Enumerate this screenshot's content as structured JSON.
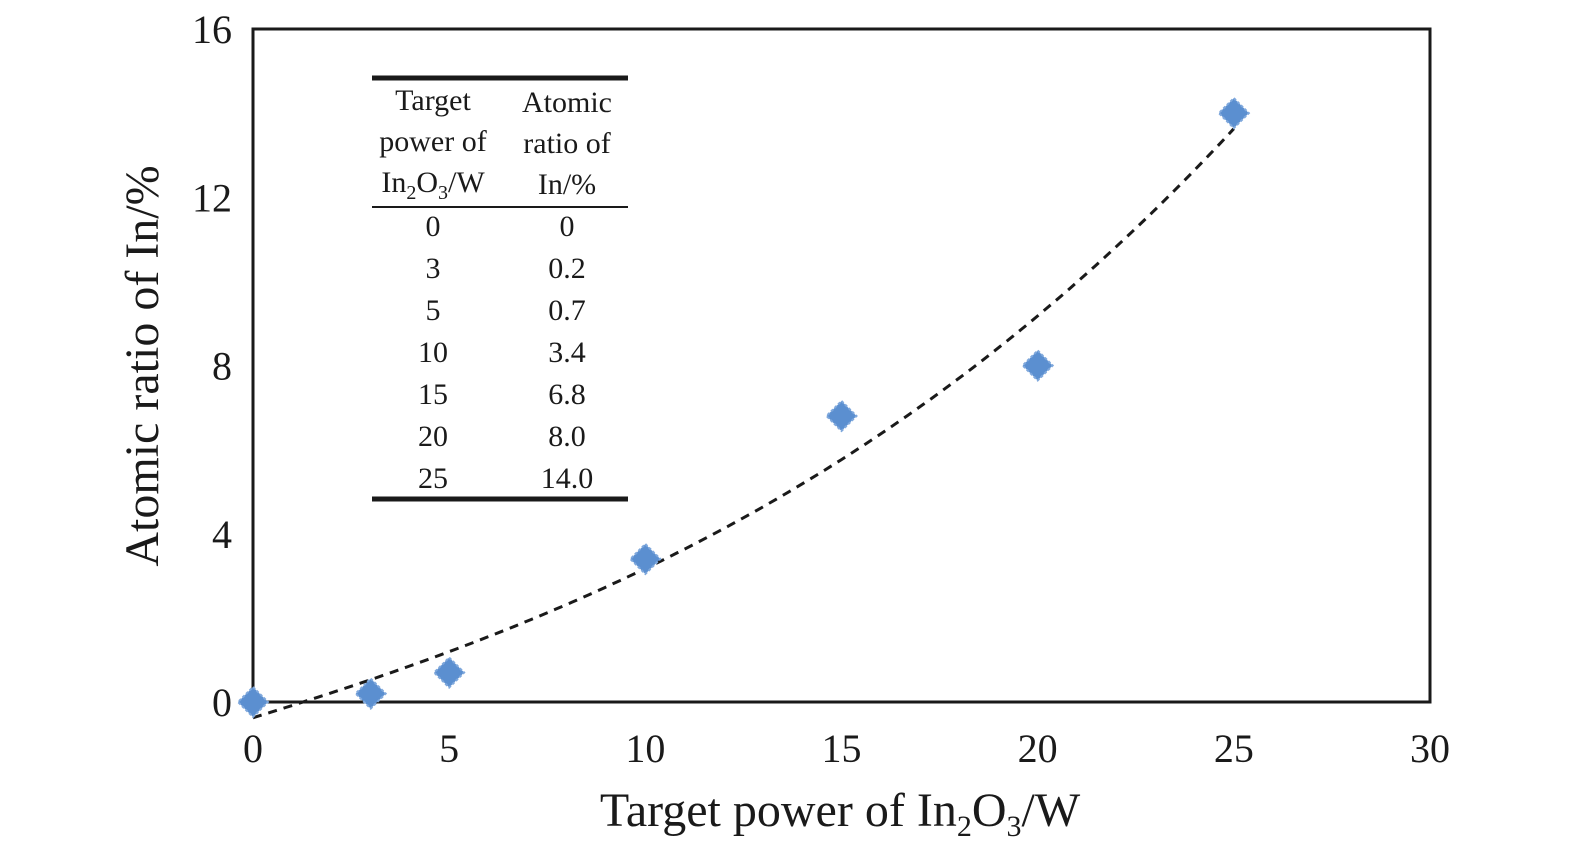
{
  "chart_data": {
    "type": "scatter",
    "xlabel": "Target power of In2O3/W",
    "xlabel_parts": [
      "Target power of In",
      "2",
      "O",
      "3",
      "/W"
    ],
    "ylabel": "Atomic ratio of In/%",
    "xlim": [
      0,
      30
    ],
    "ylim": [
      0,
      16
    ],
    "xticks": [
      "0",
      "5",
      "10",
      "15",
      "20",
      "25",
      "30"
    ],
    "yticks": [
      "0",
      "4",
      "8",
      "12",
      "16"
    ],
    "grid": false,
    "marker": "diamond",
    "marker_color": "#5b8fd0",
    "trendline": {
      "style": "dashed",
      "color": "#1a1a1a",
      "type": "polynomial"
    },
    "series": [
      {
        "x": [
          0,
          3,
          5,
          10,
          15,
          20,
          25
        ],
        "y": [
          0,
          0.2,
          0.7,
          3.4,
          6.8,
          8.0,
          14.0
        ]
      }
    ],
    "inset_table": {
      "header_col1": [
        "Target",
        "power of",
        "In2O3/W"
      ],
      "header_col1_line3_parts": [
        "In",
        "2",
        "O",
        "3",
        "/W"
      ],
      "header_col2": [
        "Atomic",
        "ratio of",
        "In/%"
      ],
      "rows": [
        [
          "0",
          "0"
        ],
        [
          "3",
          "0.2"
        ],
        [
          "5",
          "0.7"
        ],
        [
          "10",
          "3.4"
        ],
        [
          "15",
          "6.8"
        ],
        [
          "20",
          "8.0"
        ],
        [
          "25",
          "14.0"
        ]
      ]
    }
  }
}
